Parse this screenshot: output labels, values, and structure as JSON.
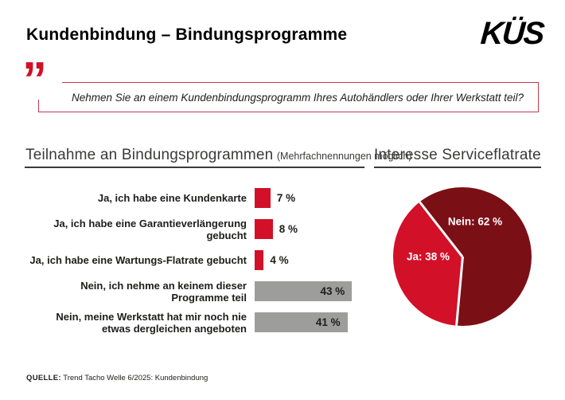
{
  "header": {
    "title": "Kundenbindung – Bindungsprogramme",
    "logo_text": "KÜS"
  },
  "quote": {
    "mark": "”",
    "text": "Nehmen Sie an einem Kundenbindungsprogramm Ihres Autohändlers oder Ihrer Werkstatt teil?"
  },
  "sections": {
    "participation": {
      "title": "Teilnahme an Bindungsprogrammen",
      "subtitle": "(Mehrfachnennungen möglich)"
    },
    "interest": {
      "title": "Interesse Serviceflatrate"
    }
  },
  "colors": {
    "red": "#d21028",
    "dark_red": "#7a1016",
    "gray": "#9d9d9c",
    "text": "#1d1d1b",
    "heading": "#3a3a39",
    "quote_border": "#c0394e"
  },
  "chart_data": [
    {
      "type": "bar",
      "orientation": "horizontal",
      "title": "Teilnahme an Bindungsprogrammen",
      "note": "Mehrfachnennungen möglich",
      "unit": "%",
      "xlim": [
        0,
        45
      ],
      "categories": [
        "Ja, ich habe eine Kundenkarte",
        "Ja, ich habe eine Garantieverlängerung gebucht",
        "Ja, ich habe eine Wartungs-Flatrate gebucht",
        "Nein, ich nehme an keinem dieser Programme teil",
        "Nein, meine Werkstatt hat mir noch nie etwas dergleichen angeboten"
      ],
      "values": [
        7,
        8,
        4,
        43,
        41
      ],
      "value_labels": [
        "7 %",
        "8 %",
        "4 %",
        "43 %",
        "41 %"
      ],
      "bar_colors": [
        "red",
        "red",
        "red",
        "gray",
        "gray"
      ],
      "value_label_position": [
        "outside",
        "outside",
        "outside",
        "inside",
        "inside"
      ],
      "grid": false,
      "legend": "none"
    },
    {
      "type": "pie",
      "title": "Interesse Serviceflatrate",
      "slices": [
        {
          "name": "Nein",
          "value": 62,
          "label": "Nein: 62 %",
          "color_key": "dark_red"
        },
        {
          "name": "Ja",
          "value": 38,
          "label": "Ja: 38 %",
          "color_key": "red"
        }
      ],
      "start_angle_deg": 322,
      "labels_inside": true,
      "legend": "none"
    }
  ],
  "footer": {
    "source_label": "QUELLE:",
    "source_text": " Trend Tacho Welle 6/2025: Kundenbindung"
  }
}
